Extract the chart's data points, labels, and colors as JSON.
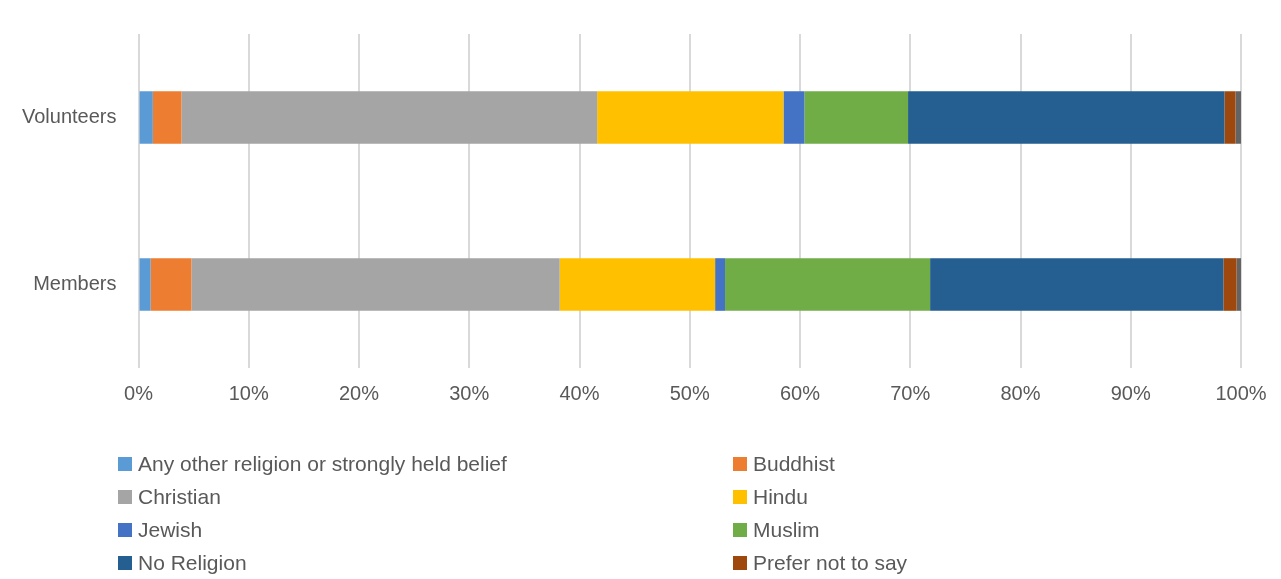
{
  "chart_data": {
    "type": "bar",
    "orientation": "horizontal",
    "stacked": true,
    "categories": [
      "Volunteers",
      "Members"
    ],
    "series": [
      {
        "name": "Any other religion or strongly held belief",
        "color": "#5b9bd5",
        "values": [
          1.3,
          1.1
        ]
      },
      {
        "name": "Buddhist",
        "color": "#ed7d31",
        "values": [
          2.6,
          3.7
        ]
      },
      {
        "name": "Christian",
        "color": "#a5a5a5",
        "values": [
          37.7,
          33.4
        ]
      },
      {
        "name": "Hindu",
        "color": "#ffc000",
        "values": [
          16.9,
          14.1
        ]
      },
      {
        "name": "Jewish",
        "color": "#4472c4",
        "values": [
          1.9,
          0.9
        ]
      },
      {
        "name": "Muslim",
        "color": "#70ad47",
        "values": [
          9.4,
          18.6
        ]
      },
      {
        "name": "No Religion",
        "color": "#255e91",
        "values": [
          28.7,
          26.6
        ]
      },
      {
        "name": "Prefer not to say",
        "color": "#9e480e",
        "values": [
          1.0,
          1.2
        ]
      },
      {
        "color": "#636363",
        "values": [
          0.5,
          0.4
        ]
      }
    ],
    "xlim": [
      0,
      100
    ],
    "xticks": [
      {
        "value": 0,
        "label": "0%"
      },
      {
        "value": 10,
        "label": "10%"
      },
      {
        "value": 20,
        "label": "20%"
      },
      {
        "value": 30,
        "label": "30%"
      },
      {
        "value": 40,
        "label": "40%"
      },
      {
        "value": 50,
        "label": "50%"
      },
      {
        "value": 60,
        "label": "60%"
      },
      {
        "value": 70,
        "label": "70%"
      },
      {
        "value": 80,
        "label": "80%"
      },
      {
        "value": 90,
        "label": "90%"
      },
      {
        "value": 100,
        "label": "100%"
      }
    ],
    "grid": "x",
    "legend": "bottom"
  }
}
